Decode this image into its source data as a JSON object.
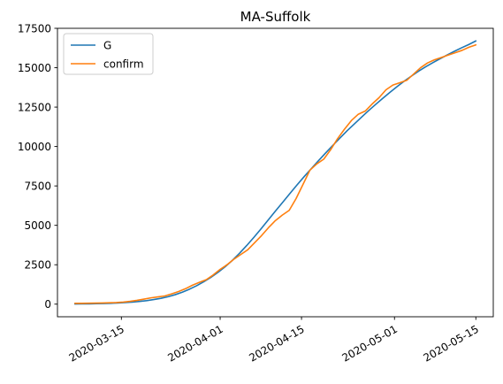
{
  "chart_data": {
    "type": "line",
    "title": "MA-Suffolk",
    "xlabel": "",
    "ylabel": "",
    "x_start": "2020-03-07",
    "x_end": "2020-05-15",
    "xlim": [
      "2020-03-04",
      "2020-05-18"
    ],
    "ylim": [
      -800,
      17500
    ],
    "x_ticks": [
      {
        "date": "2020-03-15",
        "label": "2020-03-15"
      },
      {
        "date": "2020-04-01",
        "label": "2020-04-01"
      },
      {
        "date": "2020-04-15",
        "label": "2020-04-15"
      },
      {
        "date": "2020-05-01",
        "label": "2020-05-01"
      },
      {
        "date": "2020-05-15",
        "label": "2020-05-15"
      }
    ],
    "y_ticks": [
      {
        "value": 0,
        "label": "0"
      },
      {
        "value": 2500,
        "label": "2500"
      },
      {
        "value": 5000,
        "label": "5000"
      },
      {
        "value": 7500,
        "label": "7500"
      },
      {
        "value": 10000,
        "label": "10000"
      },
      {
        "value": 12500,
        "label": "12500"
      },
      {
        "value": 15000,
        "label": "15000"
      },
      {
        "value": 17500,
        "label": "17500"
      }
    ],
    "grid": false,
    "legend_position": "top-left",
    "series": [
      {
        "name": "G",
        "color": "#1f77b4",
        "values": [
          10,
          15,
          20,
          30,
          40,
          55,
          75,
          100,
          130,
          170,
          220,
          290,
          370,
          470,
          600,
          760,
          950,
          1170,
          1420,
          1700,
          2020,
          2380,
          2780,
          3230,
          3720,
          4240,
          4780,
          5340,
          5900,
          6450,
          7000,
          7550,
          8080,
          8590,
          9090,
          9580,
          10060,
          10530,
          10990,
          11420,
          11850,
          12270,
          12670,
          13060,
          13440,
          13800,
          14150,
          14470,
          14780,
          15060,
          15320,
          15570,
          15810,
          16040,
          16260,
          16470,
          16700
        ]
      },
      {
        "name": "confirm",
        "color": "#ff7f0e",
        "values": [
          50,
          55,
          60,
          65,
          75,
          85,
          100,
          130,
          180,
          240,
          320,
          400,
          460,
          520,
          650,
          800,
          980,
          1200,
          1380,
          1550,
          1850,
          2200,
          2500,
          2850,
          3150,
          3450,
          3900,
          4350,
          4850,
          5300,
          5650,
          5950,
          6700,
          7600,
          8500,
          8900,
          9200,
          9800,
          10500,
          11100,
          11650,
          12050,
          12250,
          12700,
          13100,
          13600,
          13900,
          14050,
          14200,
          14600,
          15000,
          15300,
          15500,
          15650,
          15800,
          15950,
          16100,
          16300,
          16450
        ]
      }
    ]
  }
}
